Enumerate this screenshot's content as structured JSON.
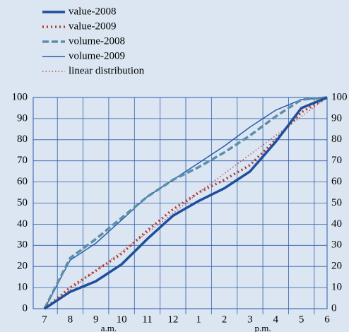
{
  "chart_data": {
    "type": "line",
    "categories": [
      "7",
      "8",
      "9",
      "10",
      "11",
      "12",
      "1",
      "2",
      "3",
      "4",
      "5",
      "6"
    ],
    "annotations": [
      "a.m.",
      "p.m."
    ],
    "series": [
      {
        "name": "value-2008",
        "color": "#1f4e9c",
        "weight": "thick",
        "style": "solid",
        "values": [
          0,
          8,
          13,
          21,
          33,
          44,
          51,
          57,
          65,
          79,
          95,
          100
        ]
      },
      {
        "name": "value-2009",
        "color": "#b03a2e",
        "weight": "thick",
        "style": "dotted",
        "values": [
          0,
          10,
          18,
          26,
          37,
          47,
          55,
          61,
          68,
          80,
          93,
          100
        ]
      },
      {
        "name": "volume-2008",
        "color": "#5b8fa8",
        "weight": "thick",
        "style": "dashed",
        "values": [
          0,
          24,
          33,
          43,
          53,
          61,
          67,
          74,
          82,
          91,
          99,
          100
        ]
      },
      {
        "name": "volume-2009",
        "color": "#2a5caa",
        "weight": "thin",
        "style": "solid",
        "values": [
          0,
          23,
          31,
          42,
          53,
          61,
          69,
          77,
          86,
          94,
          99,
          100
        ]
      },
      {
        "name": "linear distribution",
        "color": "#c0504d",
        "weight": "thin",
        "style": "dotted",
        "values": [
          0,
          9,
          18,
          27,
          36,
          45,
          55,
          64,
          73,
          82,
          91,
          100
        ]
      }
    ],
    "ylim": [
      0,
      100
    ],
    "yticks": [
      0,
      10,
      20,
      30,
      40,
      50,
      60,
      70,
      80,
      90,
      100
    ],
    "grid": true,
    "legend": "top-left",
    "right_axis": true
  }
}
